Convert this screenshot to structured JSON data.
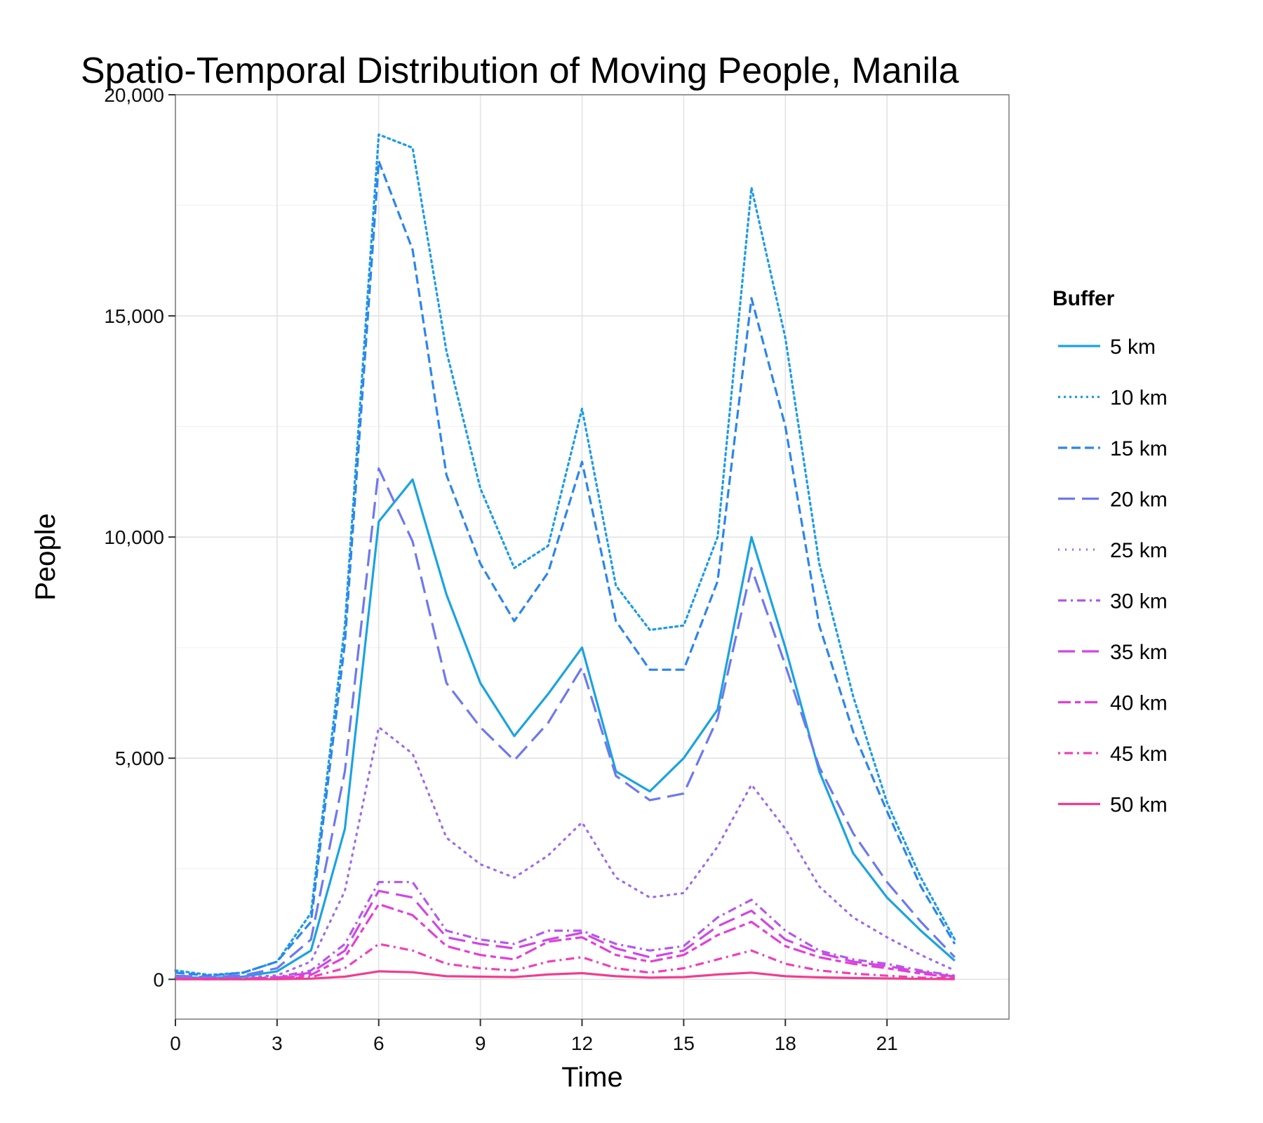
{
  "chart_data": {
    "type": "line",
    "title": "Spatio-Temporal Distribution of Moving People, Manila",
    "xlabel": "Time",
    "ylabel": "People",
    "xlim": [
      0,
      24.6
    ],
    "ylim": [
      -900,
      20000
    ],
    "x_ticks": [
      0,
      3,
      6,
      9,
      12,
      15,
      18,
      21
    ],
    "x_tick_labels": [
      "0",
      "3",
      "6",
      "9",
      "12",
      "15",
      "18",
      "21"
    ],
    "y_ticks": [
      0,
      5000,
      10000,
      15000,
      20000
    ],
    "y_tick_labels": [
      "0",
      "5,000",
      "10,000",
      "15,000",
      "20,000"
    ],
    "grid": true,
    "legend": {
      "title": "Buffer",
      "position": "right"
    },
    "x": [
      0,
      1,
      2,
      3,
      4,
      5,
      6,
      7,
      8,
      9,
      10,
      11,
      12,
      13,
      14,
      15,
      16,
      17,
      18,
      19,
      20,
      21,
      22,
      23
    ],
    "series": [
      {
        "name": "5 km",
        "color": "#1aa3e0",
        "dash": "solid",
        "values": [
          50,
          30,
          60,
          180,
          650,
          3400,
          10350,
          11300,
          8700,
          6700,
          5500,
          6450,
          7500,
          4700,
          4250,
          5000,
          6100,
          10000,
          7500,
          4700,
          2850,
          1850,
          1100,
          420
        ]
      },
      {
        "name": "10 km",
        "color": "#1c9be8",
        "dash": "dot",
        "values": [
          200,
          100,
          150,
          400,
          1500,
          8000,
          19100,
          18800,
          14200,
          11100,
          9300,
          9800,
          12900,
          8900,
          7900,
          8000,
          10000,
          17900,
          14500,
          9400,
          6400,
          4000,
          2300,
          900
        ]
      },
      {
        "name": "15 km",
        "color": "#2c85ec",
        "dash": "dash",
        "values": [
          150,
          80,
          150,
          400,
          1300,
          7600,
          18500,
          16500,
          11400,
          9400,
          8100,
          9200,
          11700,
          8100,
          7000,
          7000,
          9000,
          15400,
          12500,
          8000,
          5600,
          3800,
          2100,
          800
        ]
      },
      {
        "name": "20 km",
        "color": "#6e78f0",
        "dash": "longdash",
        "values": [
          80,
          50,
          90,
          250,
          900,
          4700,
          11550,
          9900,
          6700,
          5700,
          4950,
          5800,
          7050,
          4600,
          4050,
          4200,
          5900,
          9300,
          7100,
          4800,
          3300,
          2200,
          1300,
          500
        ]
      },
      {
        "name": "25 km",
        "color": "#9b6bf0",
        "dash": "dotted",
        "values": [
          40,
          25,
          40,
          90,
          400,
          2000,
          5700,
          5100,
          3200,
          2600,
          2300,
          2800,
          3550,
          2300,
          1850,
          1950,
          3000,
          4400,
          3400,
          2100,
          1400,
          950,
          550,
          200
        ]
      },
      {
        "name": "30 km",
        "color": "#b458ec",
        "dash": "dashdot",
        "values": [
          20,
          10,
          20,
          50,
          200,
          800,
          2200,
          2200,
          1100,
          900,
          800,
          1100,
          1100,
          800,
          650,
          750,
          1400,
          1800,
          1100,
          650,
          450,
          350,
          200,
          80
        ]
      },
      {
        "name": "35 km",
        "color": "#cf46e6",
        "dash": "longdash",
        "values": [
          15,
          8,
          15,
          40,
          150,
          650,
          2000,
          1850,
          950,
          800,
          700,
          900,
          1050,
          700,
          500,
          650,
          1200,
          1550,
          900,
          600,
          400,
          300,
          170,
          60
        ]
      },
      {
        "name": "40 km",
        "color": "#e23fd6",
        "dash": "twodash",
        "values": [
          10,
          5,
          10,
          25,
          100,
          500,
          1700,
          1450,
          750,
          550,
          450,
          850,
          950,
          550,
          400,
          550,
          1000,
          1300,
          750,
          500,
          350,
          250,
          130,
          40
        ]
      },
      {
        "name": "45 km",
        "color": "#ee40b8",
        "dash": "dotdash",
        "values": [
          5,
          3,
          5,
          10,
          50,
          250,
          800,
          650,
          350,
          250,
          200,
          400,
          500,
          250,
          150,
          250,
          450,
          650,
          350,
          200,
          130,
          80,
          40,
          15
        ]
      },
      {
        "name": "50 km",
        "color": "#f03e90",
        "dash": "solid",
        "values": [
          2,
          1,
          2,
          5,
          15,
          60,
          180,
          160,
          70,
          60,
          50,
          110,
          140,
          70,
          40,
          50,
          110,
          150,
          70,
          45,
          30,
          20,
          10,
          4
        ]
      }
    ]
  }
}
